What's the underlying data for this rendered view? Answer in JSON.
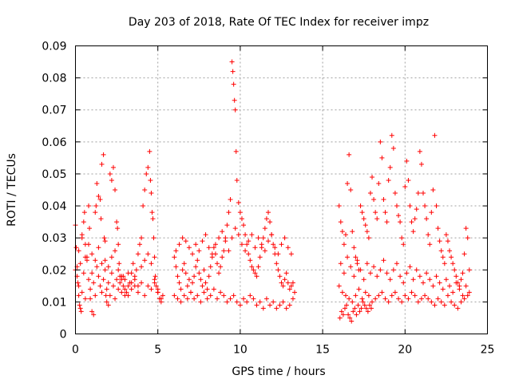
{
  "chart_data": {
    "type": "scatter",
    "title": "Day 203 of 2018, Rate Of TEC Index for receiver impz",
    "xlabel": "GPS time / hours",
    "ylabel": "ROTI / TECUs",
    "xlim": [
      0,
      25
    ],
    "ylim": [
      0,
      0.09
    ],
    "x_ticks": [
      0,
      5,
      10,
      15,
      20,
      25
    ],
    "x_tick_labels": [
      "0",
      "5",
      "10",
      "15",
      "20",
      "25"
    ],
    "y_ticks": [
      0,
      0.01,
      0.02,
      0.03,
      0.04,
      0.05,
      0.06,
      0.07,
      0.08,
      0.09
    ],
    "y_tick_labels": [
      "0",
      "0.01",
      "0.02",
      "0.03",
      "0.04",
      "0.05",
      "0.06",
      "0.07",
      "0.08",
      "0.09"
    ],
    "grid": true,
    "marker": "plus",
    "marker_color": "#ff0000",
    "series": [
      {
        "x": [
          0.0,
          0.05,
          0.1,
          0.15,
          0.2,
          0.25,
          0.3,
          0.35,
          0.4,
          0.5,
          0.55,
          0.6,
          0.7,
          0.8,
          0.85,
          0.9,
          1.0,
          1.1,
          1.2,
          1.25,
          1.3,
          1.4,
          1.5,
          1.55,
          1.6,
          1.7,
          1.75,
          1.8,
          1.85,
          1.9,
          2.0,
          2.1,
          2.2,
          2.3,
          2.4,
          2.5,
          2.55,
          2.6,
          2.65,
          2.7,
          2.8,
          2.9,
          3.0,
          3.1,
          3.2,
          3.3,
          3.4,
          3.5,
          3.6,
          3.7,
          3.8,
          3.9,
          4.0,
          4.1,
          4.2,
          4.3,
          4.4,
          4.5,
          4.55,
          4.6,
          4.65,
          4.7,
          4.75,
          4.8,
          4.85,
          4.9,
          5.0,
          5.1,
          5.2,
          5.3,
          0.0,
          0.1,
          0.2,
          0.3,
          0.4,
          0.5,
          0.6,
          0.7,
          0.8,
          0.9,
          1.0,
          1.1,
          1.2,
          1.3,
          1.4,
          1.5,
          1.6,
          1.7,
          1.8,
          1.9,
          2.0,
          2.1,
          2.2,
          2.3,
          2.4,
          2.5,
          2.6,
          2.7,
          2.8,
          2.9,
          3.0,
          3.2,
          3.4,
          3.6,
          3.8,
          4.0,
          4.2,
          4.4,
          4.6,
          4.8,
          5.0,
          5.2,
          0.2,
          0.4,
          0.6,
          0.8,
          1.0,
          1.2,
          1.4,
          1.6,
          1.8,
          2.0,
          2.2,
          2.4,
          2.6,
          2.8,
          3.0,
          3.2,
          3.4,
          3.6,
          3.8,
          4.0,
          4.2,
          4.4,
          4.6,
          4.8,
          5.0,
          6.0,
          6.1,
          6.2,
          6.3,
          6.4,
          6.5,
          6.6,
          6.7,
          6.8,
          6.9,
          7.0,
          7.1,
          7.2,
          7.3,
          7.4,
          7.5,
          7.6,
          7.7,
          7.8,
          7.9,
          8.0,
          8.1,
          8.2,
          8.3,
          8.4,
          8.5,
          8.6,
          8.7,
          8.8,
          8.9,
          9.0,
          9.1,
          9.2,
          9.3,
          9.4,
          9.5,
          9.55,
          9.6,
          9.65,
          9.7,
          9.75,
          9.8,
          9.9,
          10.0,
          10.1,
          10.2,
          10.3,
          10.4,
          10.5,
          10.6,
          10.7,
          10.8,
          10.9,
          11.0,
          11.1,
          11.2,
          11.3,
          11.4,
          11.5,
          11.6,
          11.7,
          11.8,
          11.9,
          12.0,
          12.1,
          12.2,
          12.3,
          12.4,
          12.5,
          12.6,
          12.7,
          12.8,
          12.9,
          13.0,
          13.1,
          13.2,
          13.3,
          6.0,
          6.2,
          6.4,
          6.6,
          6.8,
          7.0,
          7.2,
          7.4,
          7.6,
          7.8,
          8.0,
          8.2,
          8.4,
          8.6,
          8.8,
          9.0,
          9.2,
          9.4,
          9.6,
          9.8,
          10.0,
          10.2,
          10.4,
          10.6,
          10.8,
          11.0,
          11.2,
          11.4,
          11.6,
          11.8,
          12.0,
          12.2,
          12.4,
          12.6,
          12.8,
          13.0,
          13.2,
          6.1,
          6.3,
          6.5,
          6.7,
          6.9,
          7.1,
          7.3,
          7.5,
          7.7,
          7.9,
          8.1,
          8.3,
          8.5,
          8.7,
          8.9,
          9.1,
          9.3,
          9.5,
          9.7,
          9.9,
          10.1,
          10.3,
          10.5,
          10.7,
          10.9,
          11.1,
          11.3,
          11.5,
          11.7,
          11.9,
          12.1,
          12.3,
          12.5,
          12.7,
          12.9,
          13.1,
          16.0,
          16.1,
          16.2,
          16.3,
          16.4,
          16.5,
          16.6,
          16.7,
          16.8,
          16.9,
          17.0,
          17.1,
          17.2,
          17.3,
          17.4,
          17.5,
          17.6,
          17.7,
          17.8,
          17.9,
          18.0,
          18.1,
          18.2,
          18.3,
          18.4,
          18.5,
          18.6,
          18.7,
          18.8,
          18.9,
          19.0,
          19.1,
          19.2,
          19.3,
          19.4,
          19.5,
          19.6,
          19.7,
          19.8,
          19.9,
          20.0,
          20.1,
          20.2,
          20.3,
          20.4,
          20.5,
          20.6,
          20.7,
          20.8,
          20.9,
          21.0,
          21.1,
          21.2,
          21.3,
          21.4,
          21.5,
          21.6,
          21.7,
          21.8,
          21.9,
          22.0,
          22.1,
          22.2,
          22.3,
          22.4,
          22.5,
          22.6,
          22.7,
          22.8,
          22.9,
          23.0,
          23.1,
          23.2,
          23.3,
          23.4,
          23.5,
          23.6,
          23.7,
          23.8,
          23.9,
          16.0,
          16.2,
          16.4,
          16.6,
          16.8,
          17.0,
          17.2,
          17.4,
          17.6,
          17.8,
          18.0,
          18.2,
          18.4,
          18.6,
          18.8,
          19.0,
          19.2,
          19.4,
          19.6,
          19.8,
          20.0,
          20.2,
          20.4,
          20.6,
          20.8,
          21.0,
          21.2,
          21.4,
          21.6,
          21.8,
          22.0,
          22.2,
          22.4,
          22.6,
          22.8,
          23.0,
          23.2,
          23.4,
          23.6,
          23.8,
          16.1,
          16.3,
          16.5,
          16.7,
          16.9,
          17.1,
          17.3,
          17.5,
          17.7,
          17.9,
          18.1,
          18.3,
          18.5,
          18.7,
          18.9,
          19.1,
          19.3,
          19.5,
          19.7,
          19.9,
          20.1,
          20.3,
          20.5,
          20.7,
          20.9,
          21.1,
          21.3,
          21.5,
          21.7,
          21.9,
          22.1,
          22.3,
          22.5,
          22.7,
          22.9,
          23.1,
          23.3,
          23.5,
          23.7,
          23.9,
          16.05,
          16.15,
          16.25,
          16.35,
          16.45,
          16.55,
          16.65,
          16.75,
          16.85,
          16.95,
          17.05,
          17.15,
          17.25,
          17.35,
          17.45,
          17.55,
          17.65,
          17.75,
          17.85,
          17.95
        ],
        "y": [
          0.034,
          0.027,
          0.021,
          0.016,
          0.012,
          0.009,
          0.008,
          0.007,
          0.03,
          0.035,
          0.038,
          0.028,
          0.024,
          0.04,
          0.033,
          0.011,
          0.007,
          0.006,
          0.038,
          0.04,
          0.047,
          0.043,
          0.042,
          0.036,
          0.053,
          0.056,
          0.03,
          0.023,
          0.012,
          0.01,
          0.009,
          0.05,
          0.048,
          0.052,
          0.045,
          0.035,
          0.033,
          0.028,
          0.022,
          0.018,
          0.017,
          0.015,
          0.014,
          0.013,
          0.012,
          0.016,
          0.019,
          0.022,
          0.015,
          0.02,
          0.025,
          0.028,
          0.03,
          0.04,
          0.045,
          0.05,
          0.052,
          0.057,
          0.048,
          0.044,
          0.038,
          0.036,
          0.03,
          0.024,
          0.018,
          0.015,
          0.013,
          0.011,
          0.01,
          0.012,
          0.02,
          0.018,
          0.015,
          0.022,
          0.013,
          0.019,
          0.011,
          0.023,
          0.017,
          0.014,
          0.019,
          0.016,
          0.012,
          0.021,
          0.018,
          0.015,
          0.013,
          0.017,
          0.02,
          0.014,
          0.016,
          0.012,
          0.019,
          0.015,
          0.011,
          0.017,
          0.014,
          0.016,
          0.013,
          0.018,
          0.012,
          0.015,
          0.014,
          0.017,
          0.013,
          0.016,
          0.012,
          0.015,
          0.014,
          0.016,
          0.013,
          0.011,
          0.026,
          0.031,
          0.024,
          0.028,
          0.025,
          0.023,
          0.027,
          0.022,
          0.029,
          0.021,
          0.024,
          0.026,
          0.02,
          0.018,
          0.017,
          0.019,
          0.016,
          0.018,
          0.015,
          0.021,
          0.023,
          0.025,
          0.022,
          0.017,
          0.014,
          0.024,
          0.021,
          0.018,
          0.016,
          0.014,
          0.02,
          0.022,
          0.019,
          0.015,
          0.017,
          0.013,
          0.016,
          0.018,
          0.021,
          0.023,
          0.019,
          0.017,
          0.015,
          0.02,
          0.016,
          0.014,
          0.018,
          0.021,
          0.024,
          0.027,
          0.025,
          0.022,
          0.019,
          0.021,
          0.024,
          0.026,
          0.03,
          0.034,
          0.038,
          0.042,
          0.085,
          0.082,
          0.078,
          0.073,
          0.07,
          0.057,
          0.048,
          0.041,
          0.038,
          0.036,
          0.034,
          0.031,
          0.028,
          0.025,
          0.023,
          0.021,
          0.02,
          0.019,
          0.018,
          0.021,
          0.024,
          0.027,
          0.03,
          0.033,
          0.036,
          0.038,
          0.035,
          0.031,
          0.028,
          0.025,
          0.022,
          0.02,
          0.018,
          0.016,
          0.015,
          0.017,
          0.019,
          0.016,
          0.014,
          0.015,
          0.016,
          0.013,
          0.012,
          0.011,
          0.01,
          0.012,
          0.011,
          0.013,
          0.011,
          0.012,
          0.01,
          0.013,
          0.011,
          0.012,
          0.014,
          0.011,
          0.013,
          0.012,
          0.01,
          0.011,
          0.012,
          0.01,
          0.009,
          0.011,
          0.01,
          0.012,
          0.011,
          0.009,
          0.01,
          0.008,
          0.011,
          0.009,
          0.01,
          0.008,
          0.009,
          0.01,
          0.008,
          0.009,
          0.011,
          0.026,
          0.028,
          0.03,
          0.029,
          0.027,
          0.025,
          0.028,
          0.026,
          0.029,
          0.031,
          0.027,
          0.025,
          0.028,
          0.03,
          0.032,
          0.029,
          0.026,
          0.03,
          0.033,
          0.031,
          0.028,
          0.026,
          0.029,
          0.031,
          0.027,
          0.03,
          0.028,
          0.026,
          0.029,
          0.031,
          0.027,
          0.025,
          0.028,
          0.03,
          0.027,
          0.025,
          0.04,
          0.035,
          0.032,
          0.028,
          0.031,
          0.047,
          0.056,
          0.045,
          0.032,
          0.027,
          0.024,
          0.022,
          0.02,
          0.04,
          0.038,
          0.036,
          0.034,
          0.032,
          0.03,
          0.044,
          0.049,
          0.042,
          0.038,
          0.036,
          0.047,
          0.06,
          0.055,
          0.042,
          0.038,
          0.035,
          0.048,
          0.052,
          0.062,
          0.058,
          0.044,
          0.04,
          0.037,
          0.035,
          0.03,
          0.028,
          0.046,
          0.054,
          0.048,
          0.04,
          0.035,
          0.032,
          0.036,
          0.039,
          0.044,
          0.057,
          0.053,
          0.044,
          0.04,
          0.036,
          0.031,
          0.028,
          0.038,
          0.045,
          0.062,
          0.04,
          0.033,
          0.029,
          0.026,
          0.024,
          0.022,
          0.031,
          0.029,
          0.026,
          0.024,
          0.022,
          0.02,
          0.018,
          0.016,
          0.015,
          0.017,
          0.019,
          0.025,
          0.033,
          0.03,
          0.02,
          0.015,
          0.013,
          0.012,
          0.011,
          0.01,
          0.012,
          0.014,
          0.011,
          0.013,
          0.012,
          0.01,
          0.011,
          0.012,
          0.013,
          0.011,
          0.01,
          0.012,
          0.013,
          0.011,
          0.01,
          0.012,
          0.011,
          0.013,
          0.012,
          0.01,
          0.011,
          0.012,
          0.011,
          0.01,
          0.009,
          0.011,
          0.01,
          0.009,
          0.012,
          0.01,
          0.009,
          0.008,
          0.01,
          0.011,
          0.012,
          0.022,
          0.019,
          0.024,
          0.021,
          0.018,
          0.023,
          0.02,
          0.017,
          0.022,
          0.019,
          0.021,
          0.018,
          0.02,
          0.023,
          0.019,
          0.017,
          0.02,
          0.022,
          0.018,
          0.016,
          0.019,
          0.021,
          0.017,
          0.02,
          0.018,
          0.016,
          0.019,
          0.017,
          0.015,
          0.018,
          0.016,
          0.014,
          0.017,
          0.015,
          0.013,
          0.016,
          0.014,
          0.012,
          0.015,
          0.013,
          0.005,
          0.007,
          0.006,
          0.008,
          0.009,
          0.006,
          0.005,
          0.004,
          0.007,
          0.008,
          0.006,
          0.009,
          0.007,
          0.008,
          0.01,
          0.009,
          0.008,
          0.007,
          0.009,
          0.008
        ]
      }
    ]
  }
}
